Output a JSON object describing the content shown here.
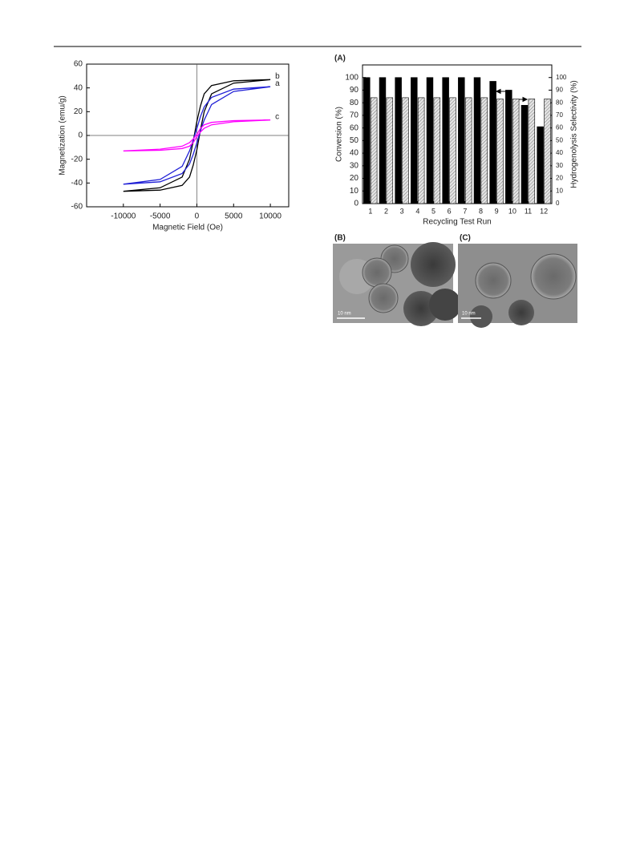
{
  "chart_data": [
    {
      "type": "line",
      "xlabel": "Magnetic Field (Oe)",
      "ylabel": "Magnetization (emu/g)",
      "x": [
        10000,
        5000,
        2000,
        1000,
        500,
        0,
        -500,
        -1000,
        -2000,
        -5000,
        -10000,
        -5000,
        -2000,
        -1000,
        -500,
        0,
        500,
        1000,
        2000,
        5000,
        10000
      ],
      "series": [
        {
          "name": "b",
          "color": "#000000",
          "values": [
            47,
            46,
            42,
            35,
            25,
            12,
            -5,
            -20,
            -35,
            -44,
            -47,
            -46,
            -42,
            -35,
            -25,
            -12,
            5,
            20,
            35,
            44,
            47
          ]
        },
        {
          "name": "a",
          "color": "#1f1fd6",
          "values": [
            41,
            39,
            32,
            24,
            16,
            6,
            -4,
            -13,
            -26,
            -37,
            -41,
            -39,
            -32,
            -24,
            -16,
            -6,
            4,
            13,
            26,
            37,
            41
          ]
        },
        {
          "name": "c",
          "color": "#ff00ff",
          "values": [
            13,
            12.5,
            11,
            9,
            6,
            1,
            -3,
            -6,
            -9,
            -11.5,
            -13,
            -12.5,
            -11,
            -9,
            -6,
            -1,
            3,
            6,
            9,
            11.5,
            13
          ]
        }
      ],
      "xlim": [
        -15000,
        12500
      ],
      "xticks": [
        -10000,
        -5000,
        0,
        5000,
        10000
      ],
      "ylim": [
        -60,
        60
      ],
      "yticks": [
        -60,
        -40,
        -20,
        0,
        20,
        40,
        60
      ]
    },
    {
      "type": "bar",
      "title": "(A)",
      "xlabel": "Recycling Test Run",
      "ylabel": "Conversion (%)",
      "y2label": "Hydrogenolysis Selectivity (%)",
      "categories": [
        "1",
        "2",
        "3",
        "4",
        "5",
        "6",
        "7",
        "8",
        "9",
        "10",
        "11",
        "12"
      ],
      "series": [
        {
          "name": "Conversion",
          "color": "#000000",
          "values": [
            100,
            100,
            100,
            100,
            100,
            100,
            100,
            100,
            97,
            90,
            78,
            61
          ]
        },
        {
          "name": "Hydrogenolysis Selectivity",
          "color": "#d0d0d0",
          "hatch": true,
          "axis": "y2",
          "values": [
            84,
            84,
            84,
            84,
            84,
            84,
            84,
            84,
            83,
            83,
            83,
            83
          ]
        }
      ],
      "ylim": [
        0,
        110
      ],
      "yticks": [
        0,
        10,
        20,
        30,
        40,
        50,
        60,
        70,
        80,
        90,
        100
      ],
      "y2lim": [
        0,
        110
      ],
      "y2ticks": [
        0,
        10,
        20,
        30,
        40,
        50,
        60,
        70,
        80,
        90,
        100
      ]
    }
  ],
  "images": [
    {
      "label": "(B)",
      "scale_bar": "10 nm"
    },
    {
      "label": "(C)",
      "scale_bar": "10 nm"
    }
  ]
}
